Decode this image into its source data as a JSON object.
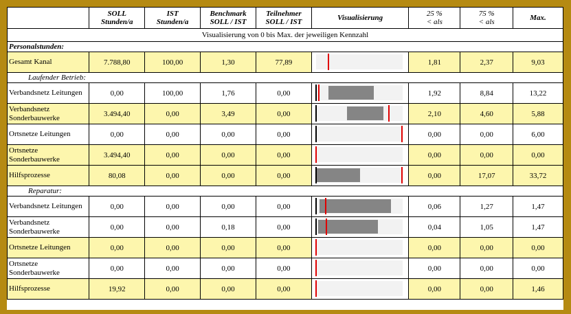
{
  "headers": [
    "",
    "SOLL\nStunden/a",
    "IST\nStunden/a",
    "Benchmark\nSOLL / IST",
    "Teilnehmer\nSOLL / IST",
    "Visualisierung",
    "25 %\n< als",
    "75 %\n< als",
    "Max."
  ],
  "subheader": "Visualisierung von 0 bis Max. der jeweiligen Kennzahl",
  "sections": {
    "personal": "Personalstunden:",
    "betrieb": "Laufender Betrieb:",
    "reparatur": "Reparatur:"
  },
  "rows": [
    {
      "label": "Gesamt Kanal",
      "soll": "7.788,80",
      "ist": "100,00",
      "bench": "1,30",
      "teil": "77,89",
      "p25": "1,81",
      "p75": "2,37",
      "max": "9,03",
      "vis": {
        "bar": null,
        "ist": 0.14,
        "ref": null
      }
    },
    {
      "label": "Verbandsnetz Leitungen",
      "soll": "0,00",
      "ist": "100,00",
      "bench": "1,76",
      "teil": "0,00",
      "p25": "1,92",
      "p75": "8,84",
      "max": "13,22",
      "vis": {
        "bar": [
          0.145,
          0.67
        ],
        "ist": 0.035,
        "ref": 0.0
      }
    },
    {
      "label": "Verbandsnetz Sonderbauwerke",
      "soll": "3.494,40",
      "ist": "0,00",
      "bench": "3,49",
      "teil": "0,00",
      "p25": "2,10",
      "p75": "4,60",
      "max": "5,88",
      "vis": {
        "bar": [
          0.357,
          0.782
        ],
        "ist": 0.845,
        "ref": 0.0
      }
    },
    {
      "label": "Ortsnetze Leitungen",
      "soll": "0,00",
      "ist": "0,00",
      "bench": "0,00",
      "teil": "0,00",
      "p25": "0,00",
      "p75": "0,00",
      "max": "6,00",
      "vis": {
        "bar": null,
        "ist": 0.995,
        "ref": 0.0
      }
    },
    {
      "label": "Ortsnetze Sonderbauwerke",
      "soll": "3.494,40",
      "ist": "0,00",
      "bench": "0,00",
      "teil": "0,00",
      "p25": "0,00",
      "p75": "0,00",
      "max": "0,00",
      "vis": {
        "bar": null,
        "ist": 0.0,
        "ref": null
      }
    },
    {
      "label": "Hilfsprozesse",
      "soll": "80,08",
      "ist": "0,00",
      "bench": "0,00",
      "teil": "0,00",
      "p25": "0,00",
      "p75": "17,07",
      "max": "33,72",
      "vis": {
        "bar": [
          0.0,
          0.506
        ],
        "ist": 0.995,
        "ref": 0.0
      }
    },
    {
      "label": "Verbandsnetz Leitungen",
      "soll": "0,00",
      "ist": "0,00",
      "bench": "0,00",
      "teil": "0,00",
      "p25": "0,06",
      "p75": "1,27",
      "max": "1,47",
      "vis": {
        "bar": [
          0.041,
          0.864
        ],
        "ist": 0.11,
        "ref": 0.0
      }
    },
    {
      "label": "Verbandsnetz Sonderbauwerke",
      "soll": "0,00",
      "ist": "0,00",
      "bench": "0,18",
      "teil": "0,00",
      "p25": "0,04",
      "p75": "1,05",
      "max": "1,47",
      "vis": {
        "bar": [
          0.027,
          0.714
        ],
        "ist": 0.122,
        "ref": 0.0
      }
    },
    {
      "label": "Ortsnetze Leitungen",
      "soll": "0,00",
      "ist": "0,00",
      "bench": "0,00",
      "teil": "0,00",
      "p25": "0,00",
      "p75": "0,00",
      "max": "0,00",
      "vis": {
        "bar": null,
        "ist": 0.0,
        "ref": null
      }
    },
    {
      "label": "Ortsnetze Sonderbauwerke",
      "soll": "0,00",
      "ist": "0,00",
      "bench": "0,00",
      "teil": "0,00",
      "p25": "0,00",
      "p75": "0,00",
      "max": "0,00",
      "vis": {
        "bar": null,
        "ist": 0.0,
        "ref": null
      }
    },
    {
      "label": "Hilfsprozesse",
      "soll": "19,92",
      "ist": "0,00",
      "bench": "0,00",
      "teil": "0,00",
      "p25": "0,00",
      "p75": "0,00",
      "max": "1,46",
      "vis": {
        "bar": null,
        "ist": 0.0,
        "ref": null
      }
    }
  ],
  "colors": {
    "ist_marker": "#e00000",
    "range_bar": "#858585",
    "highlight_row": "#fdf6ad",
    "frame": "#b58a12"
  }
}
